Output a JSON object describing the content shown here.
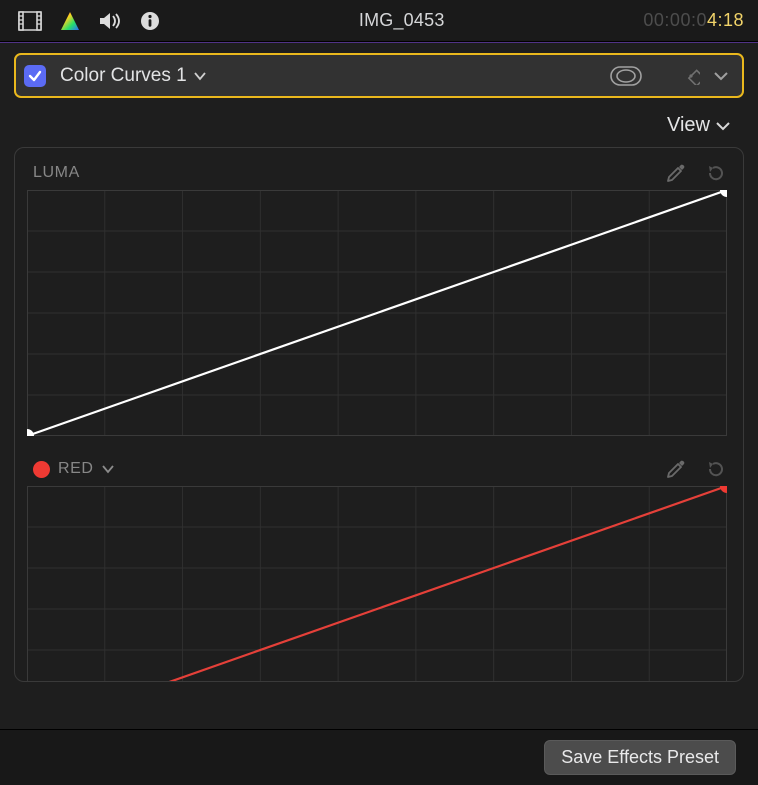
{
  "colors": {
    "background": "#1e1e1e",
    "accent_border": "#eab81d",
    "checkbox_bg": "#5b6bf4",
    "divider": "#6b3fbf",
    "grid_line": "#303030",
    "grid_border": "#3a3a3a",
    "text_muted": "#878787",
    "text_normal": "#e2e3e4",
    "timecode_dim": "#4d4d4d",
    "timecode_hl": "#f2d46a",
    "footer_btn_bg": "#4c4c4c"
  },
  "topbar": {
    "title": "IMG_0453",
    "timecode_dim": "00:00:0",
    "timecode_hl": "4:18"
  },
  "header": {
    "checkbox_checked": true,
    "effect_name": "Color Curves 1"
  },
  "view_menu": {
    "label": "View"
  },
  "curves": {
    "grid": {
      "cols": 9,
      "rows": 6
    },
    "luma": {
      "label": "LUMA",
      "line_color": "#ffffff",
      "point_color": "#ffffff",
      "points": [
        [
          0,
          0
        ],
        [
          1,
          1
        ]
      ]
    },
    "red": {
      "label": "RED",
      "swatch_color": "#ef3a33",
      "line_color": "#e54039",
      "point_color": "#ef3a33",
      "points": [
        [
          0,
          0
        ],
        [
          1,
          1
        ]
      ]
    }
  },
  "footer": {
    "save_preset_label": "Save Effects Preset"
  }
}
